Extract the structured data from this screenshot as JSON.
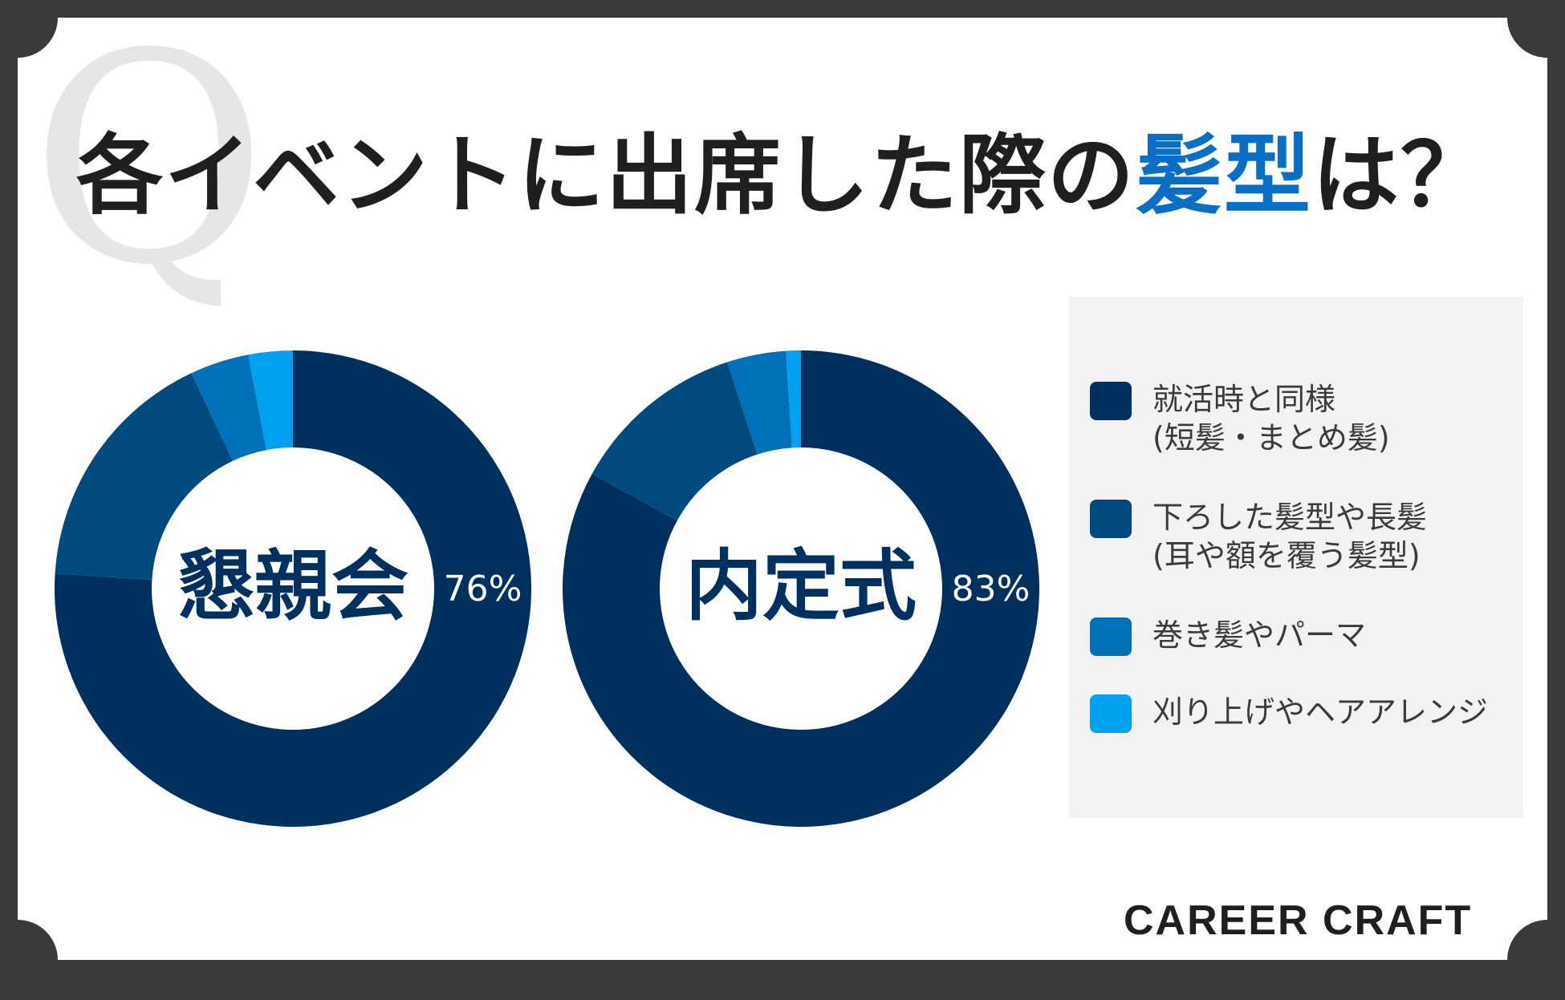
{
  "title": {
    "before": "各イベントに出席した際の",
    "accent": "髪型",
    "after": "は？"
  },
  "watermark": "Q",
  "colors": {
    "accent": "#0a6fc4",
    "series": [
      "#00305d",
      "#004a80",
      "#0070b8",
      "#00a2f0"
    ]
  },
  "chart_data": [
    {
      "type": "pie",
      "title": "懇親会",
      "categories": [
        "就活時と同様(短髪・まとめ髪)",
        "下ろした髪型や長髪(耳や額を覆う髪型)",
        "巻き髪やパーマ",
        "刈り上げやヘアアレンジ"
      ],
      "values": [
        76,
        17,
        4,
        3
      ],
      "data_label": "76%"
    },
    {
      "type": "pie",
      "title": "内定式",
      "categories": [
        "就活時と同様(短髪・まとめ髪)",
        "下ろした髪型や長髪(耳や額を覆う髪型)",
        "巻き髪やパーマ",
        "刈り上げやヘアアレンジ"
      ],
      "values": [
        83,
        12,
        4,
        1
      ],
      "data_label": "83%"
    }
  ],
  "legend": [
    {
      "line1": "就活時と同様",
      "line2": "(短髪・まとめ髪)"
    },
    {
      "line1": "下ろした髪型や長髪",
      "line2": "(耳や額を覆う髪型)"
    },
    {
      "line1": "巻き髪やパーマ",
      "line2": ""
    },
    {
      "line1": "刈り上げやヘアアレンジ",
      "line2": ""
    }
  ],
  "logo": "CAREER CRAFT"
}
